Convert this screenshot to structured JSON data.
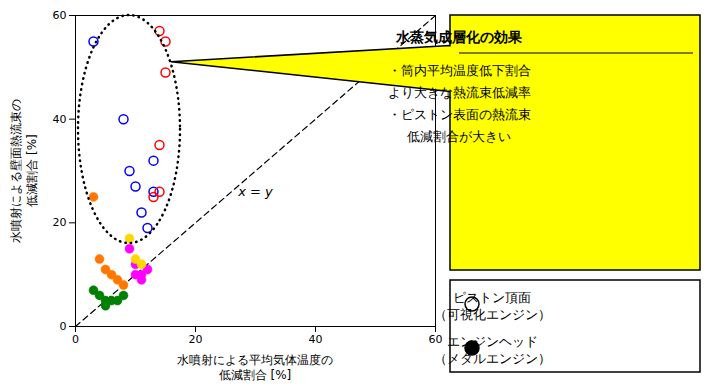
{
  "chart_data": {
    "type": "scatter",
    "xlabel": "水噴射による平均気体温度の\n低減割合 [%]",
    "ylabel": "水噴射による壁面熱流束の\n低減割合 [%]",
    "xlim": [
      0,
      60
    ],
    "ylim": [
      0,
      60
    ],
    "xticks": [
      0,
      20,
      40,
      60
    ],
    "yticks": [
      0,
      20,
      40,
      60
    ],
    "grid": false,
    "series": [
      {
        "color": "blue",
        "marker": "circle-open",
        "x": [
          3,
          8,
          9,
          10,
          11,
          12,
          13,
          13
        ],
        "values": [
          55,
          40,
          30,
          27,
          22,
          19,
          26,
          32
        ]
      },
      {
        "color": "red",
        "marker": "circle-open",
        "x": [
          14,
          15,
          15,
          14,
          14,
          13
        ],
        "values": [
          57,
          55,
          49,
          35,
          26,
          25
        ]
      },
      {
        "color": "#FF7700",
        "marker": "circle",
        "x": [
          3,
          4,
          5,
          6,
          7,
          8
        ],
        "values": [
          25,
          13,
          11,
          10,
          9,
          8
        ]
      },
      {
        "color": "magenta",
        "marker": "circle",
        "x": [
          9,
          10,
          10,
          11,
          11,
          12
        ],
        "values": [
          15,
          12,
          10,
          10,
          9,
          11
        ]
      },
      {
        "color": "#FFD700",
        "marker": "circle",
        "x": [
          9,
          10,
          11
        ],
        "values": [
          17,
          13,
          12
        ]
      },
      {
        "color": "green",
        "marker": "circle",
        "x": [
          3,
          4,
          5,
          5,
          6,
          7,
          8
        ],
        "values": [
          7,
          6,
          5,
          4,
          5,
          5,
          6
        ]
      }
    ],
    "reference_line": {
      "x": [
        0,
        60
      ],
      "values": [
        0,
        60
      ],
      "line_style": "dashed",
      "label": "x = y",
      "label_x": 30,
      "label_y": 26
    },
    "ellipse": {
      "center_x": 9,
      "center_y": 38,
      "width": 17,
      "height": 44,
      "line_style": "dotted"
    },
    "annotation": {
      "title": "水蒸気成層化の効果",
      "text": "・筒内平均温度低下割合\nより大きな熱流束低減率\n・ピストン表面の熱流束\n低減割合が大きい",
      "x": 16,
      "y": 51,
      "color": "#FFFF00"
    },
    "legend_entries": [
      {
        "marker": "circle-open",
        "color": "black",
        "label": "ピストン頂面\n（可視化エンジン）"
      },
      {
        "marker": "circle",
        "color": "black",
        "label": "エンジンヘッド\n（メタルエンジン）"
      }
    ]
  }
}
